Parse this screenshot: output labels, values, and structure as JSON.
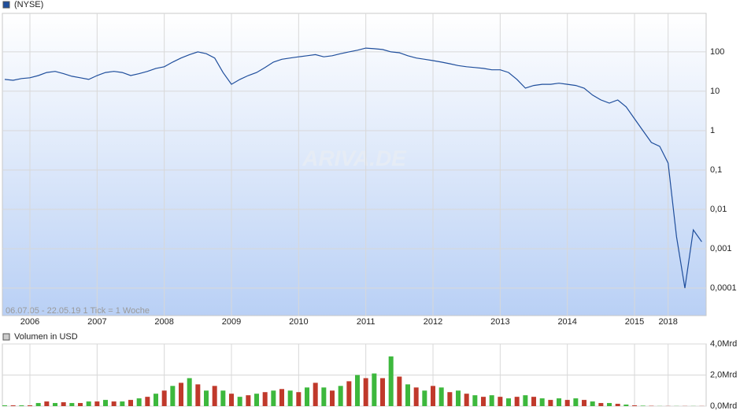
{
  "chart_data": [
    {
      "type": "line",
      "log_scale": true,
      "grid": true,
      "legend": "top-left",
      "annotation": "06.07.05 - 22.05.19   1 Tick = 1 Woche",
      "watermark": "ARIVA.DE",
      "categories": [
        null,
        null,
        null,
        "2006",
        null,
        null,
        null,
        null,
        null,
        null,
        null,
        "2007",
        null,
        null,
        null,
        null,
        null,
        null,
        null,
        "2008",
        null,
        null,
        null,
        null,
        null,
        null,
        null,
        "2009",
        null,
        null,
        null,
        null,
        null,
        null,
        null,
        "2010",
        null,
        null,
        null,
        null,
        null,
        null,
        null,
        "2011",
        null,
        null,
        null,
        null,
        null,
        null,
        null,
        "2012",
        null,
        null,
        null,
        null,
        null,
        null,
        null,
        "2013",
        null,
        null,
        null,
        null,
        null,
        null,
        null,
        "2014",
        null,
        null,
        null,
        null,
        null,
        null,
        null,
        "2015",
        null,
        null,
        null,
        "2018",
        null,
        null,
        null,
        null
      ],
      "series": [
        {
          "name": "(NYSE)",
          "color": "#1f4e9c",
          "values": [
            20,
            19,
            21,
            22,
            25,
            30,
            32,
            28,
            24,
            22,
            20,
            25,
            30,
            32,
            30,
            25,
            28,
            32,
            38,
            42,
            55,
            70,
            85,
            100,
            90,
            70,
            30,
            15,
            20,
            25,
            30,
            40,
            55,
            65,
            70,
            75,
            80,
            85,
            75,
            80,
            90,
            100,
            110,
            125,
            120,
            115,
            100,
            95,
            80,
            70,
            65,
            60,
            55,
            50,
            45,
            42,
            40,
            38,
            35,
            35,
            30,
            20,
            12,
            14,
            15,
            15,
            16,
            15,
            14,
            12,
            8,
            6,
            5,
            6,
            4,
            2,
            1,
            0.5,
            0.4,
            0.15,
            0.002,
            0.0001,
            0.003,
            0.0015
          ]
        }
      ],
      "ylim": [
        2e-05,
        950
      ],
      "yticks": [
        100,
        10,
        1,
        {
          "value": 0.1,
          "label": "0,1"
        },
        {
          "value": 0.01,
          "label": "0,01"
        },
        {
          "value": 0.001,
          "label": "0,001"
        },
        {
          "value": 0.0001,
          "label": "0,0001"
        }
      ]
    },
    {
      "type": "bar",
      "grid": true,
      "series": [
        {
          "name": "Volumen in USD",
          "color": "#3db83d",
          "alt_color": "#c0392b",
          "values": [
            0.05,
            0.05,
            0.05,
            0.05,
            0.2,
            0.3,
            0.2,
            0.25,
            0.2,
            0.2,
            0.3,
            0.3,
            0.4,
            0.3,
            0.3,
            0.4,
            0.5,
            0.6,
            0.8,
            1.0,
            1.3,
            1.5,
            1.8,
            1.4,
            1.0,
            1.3,
            1.0,
            0.8,
            0.6,
            0.7,
            0.8,
            0.9,
            1.0,
            1.1,
            1.0,
            0.9,
            1.2,
            1.5,
            1.2,
            1.0,
            1.3,
            1.6,
            2.0,
            1.8,
            2.1,
            1.8,
            3.2,
            1.9,
            1.4,
            1.2,
            1.0,
            1.3,
            1.2,
            0.9,
            1.0,
            0.8,
            0.7,
            0.6,
            0.7,
            0.6,
            0.5,
            0.6,
            0.7,
            0.6,
            0.5,
            0.4,
            0.5,
            0.4,
            0.5,
            0.4,
            0.3,
            0.2,
            0.2,
            0.15,
            0.1,
            0.05,
            0.03,
            0.02,
            0.01,
            0.01,
            0.01,
            0.01,
            0.01,
            0.01
          ]
        }
      ],
      "ylim": [
        0,
        4
      ],
      "yticks": [
        {
          "value": 4,
          "label": "4,0Mrd"
        },
        {
          "value": 2,
          "label": "2,0Mrd"
        },
        {
          "value": 0,
          "label": "0,0Mrd"
        }
      ]
    }
  ]
}
